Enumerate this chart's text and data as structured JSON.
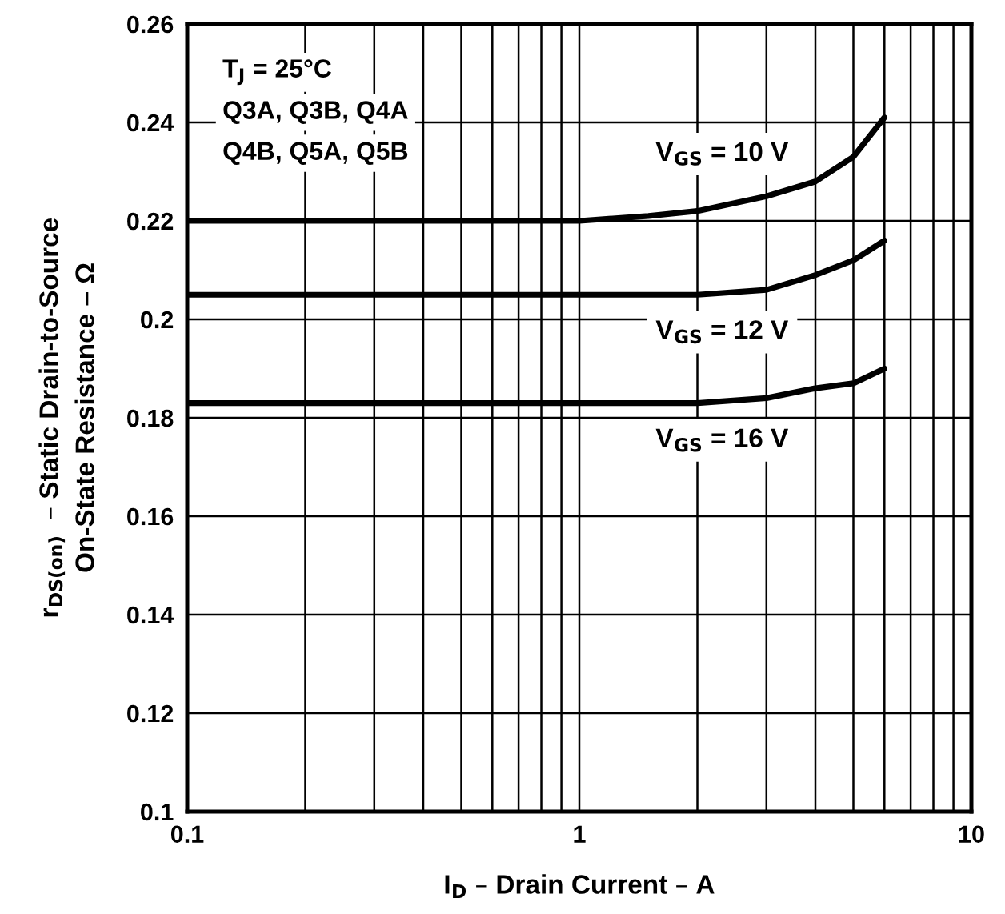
{
  "chart_data": {
    "type": "line",
    "xlabel": "I$_{D}$ – Drain Current – A",
    "ylabel": "r$_{DS(on)}$  – Static Drain-to-Source\nOn-State Resistance – Ω",
    "log": "x",
    "grid": true,
    "legend": false,
    "marker": "none",
    "line_style": "solid",
    "xlim": [
      0.1,
      10
    ],
    "ylim": [
      0.1,
      0.26
    ],
    "xticks": [
      {
        "value": 0.1,
        "label": "0.1"
      },
      {
        "value": 0.2,
        "label": null
      },
      {
        "value": 0.3,
        "label": null
      },
      {
        "value": 0.4,
        "label": null
      },
      {
        "value": 0.5,
        "label": null
      },
      {
        "value": 0.6,
        "label": null
      },
      {
        "value": 0.7,
        "label": null
      },
      {
        "value": 0.8,
        "label": null
      },
      {
        "value": 0.9,
        "label": null
      },
      1,
      {
        "value": 2,
        "label": null
      },
      {
        "value": 3,
        "label": null
      },
      {
        "value": 4,
        "label": null
      },
      {
        "value": 5,
        "label": null
      },
      {
        "value": 6,
        "label": null
      },
      {
        "value": 7,
        "label": null
      },
      {
        "value": 8,
        "label": null
      },
      {
        "value": 9,
        "label": null
      },
      10
    ],
    "yticks": [
      {
        "value": 0.1,
        "label": "0.1"
      },
      {
        "value": 0.12,
        "label": "0.12"
      },
      {
        "value": 0.14,
        "label": "0.14"
      },
      {
        "value": 0.16,
        "label": "0.16"
      },
      {
        "value": 0.18,
        "label": "0.18"
      },
      {
        "value": 0.2,
        "label": "0.2"
      },
      {
        "value": 0.22,
        "label": "0.22"
      },
      {
        "value": 0.24,
        "label": "0.24"
      },
      {
        "value": 0.26,
        "label": "0.26"
      }
    ],
    "series": [
      {
        "name": "V$_{GS}$ = 10 V",
        "color": "#000000",
        "x": [
          0.1,
          0.5,
          1,
          1.5,
          2,
          3,
          4,
          5,
          6
        ],
        "values": [
          0.22,
          0.22,
          0.22,
          0.221,
          0.222,
          0.225,
          0.228,
          0.233,
          0.241
        ]
      },
      {
        "name": "V$_{GS}$ = 12 V",
        "color": "#000000",
        "x": [
          0.1,
          0.5,
          1,
          2,
          3,
          4,
          5,
          6
        ],
        "values": [
          0.205,
          0.205,
          0.205,
          0.205,
          0.206,
          0.209,
          0.212,
          0.216
        ]
      },
      {
        "name": "V$_{GS}$ = 16 V",
        "color": "#000000",
        "x": [
          0.1,
          0.5,
          1,
          2,
          3,
          4,
          5,
          6
        ],
        "values": [
          0.183,
          0.183,
          0.183,
          0.183,
          0.184,
          0.186,
          0.187,
          0.19
        ]
      }
    ],
    "annotations": [
      "T$_{J}$ = 25°C",
      "Q3A, Q3B, Q4A",
      "Q4B, Q5A, Q5B"
    ]
  }
}
